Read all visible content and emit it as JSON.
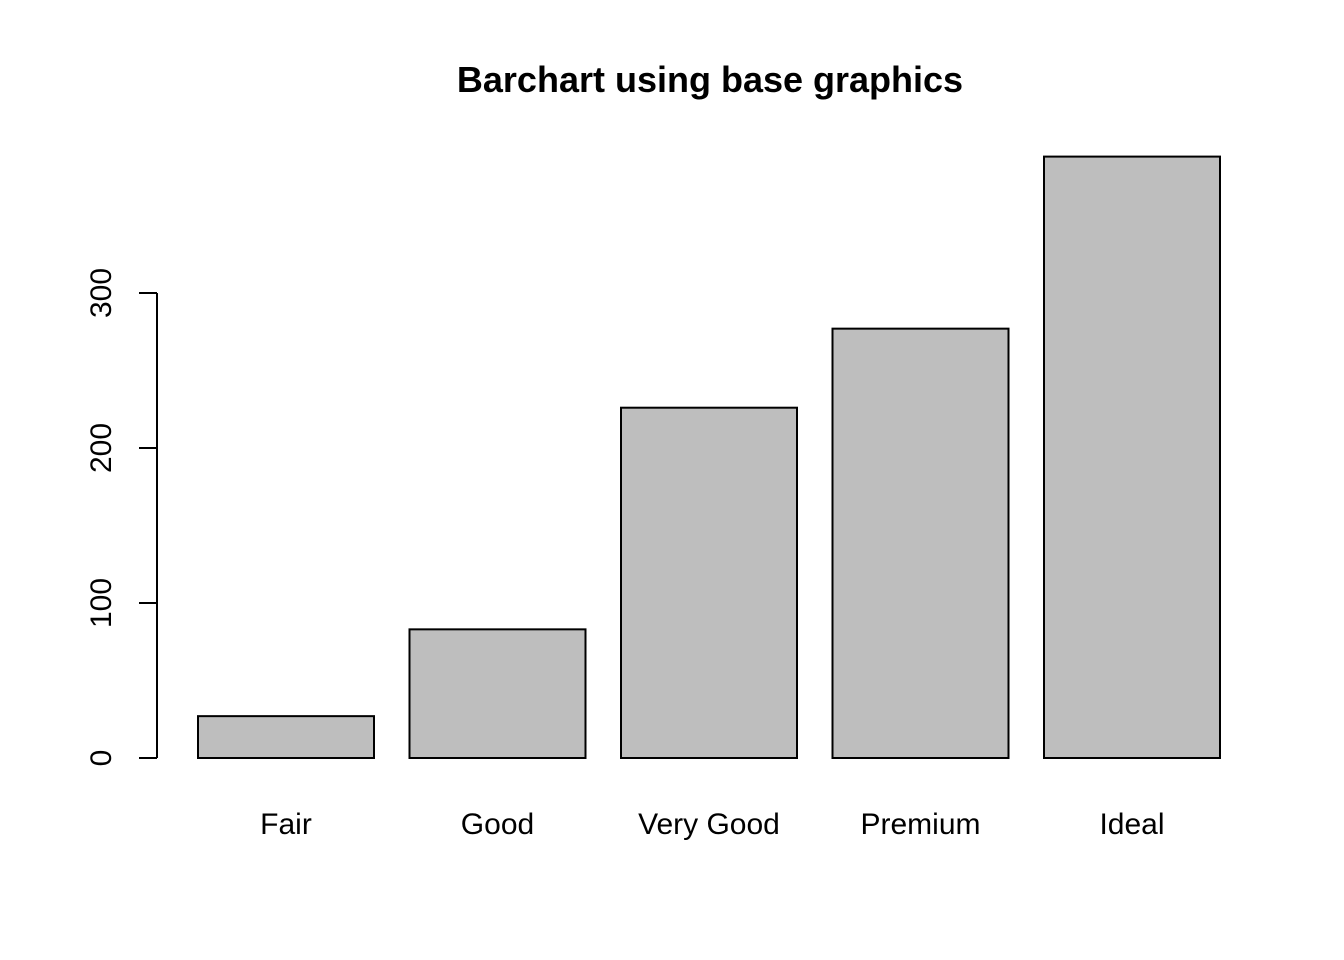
{
  "chart_data": {
    "type": "bar",
    "title": "Barchart using base graphics",
    "xlabel": "",
    "ylabel": "",
    "categories": [
      "Fair",
      "Good",
      "Very Good",
      "Premium",
      "Ideal"
    ],
    "values": [
      27,
      83,
      226,
      277,
      388
    ],
    "ylim": [
      0,
      388
    ],
    "y_ticks": [
      0,
      100,
      200,
      300
    ],
    "grid": false,
    "bar_fill": "#bebebe",
    "bar_stroke": "#000000"
  }
}
